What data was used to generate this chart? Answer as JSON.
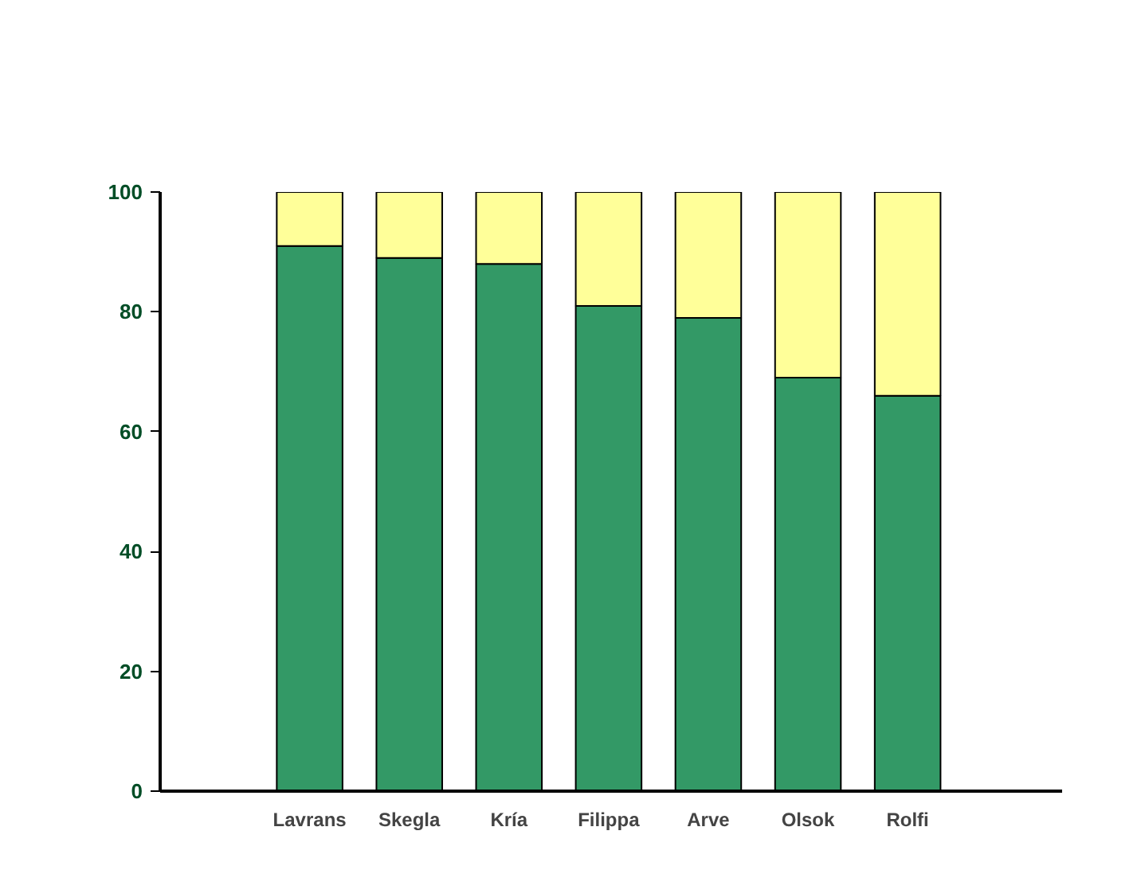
{
  "chart_data": {
    "type": "bar",
    "stacked": true,
    "categories": [
      "Lavrans",
      "Skegla",
      "Kría",
      "Filippa",
      "Arve",
      "Olsok",
      "Rolfi"
    ],
    "series": [
      {
        "color": "#339966",
        "values": [
          91,
          89,
          88,
          81,
          79,
          69,
          66
        ]
      },
      {
        "color": "#ffff99",
        "values": [
          9,
          11,
          12,
          19,
          21,
          31,
          34
        ]
      }
    ],
    "ylim": [
      0,
      100
    ],
    "yticks": [
      0,
      20,
      40,
      60,
      80,
      100
    ],
    "grid": false
  }
}
